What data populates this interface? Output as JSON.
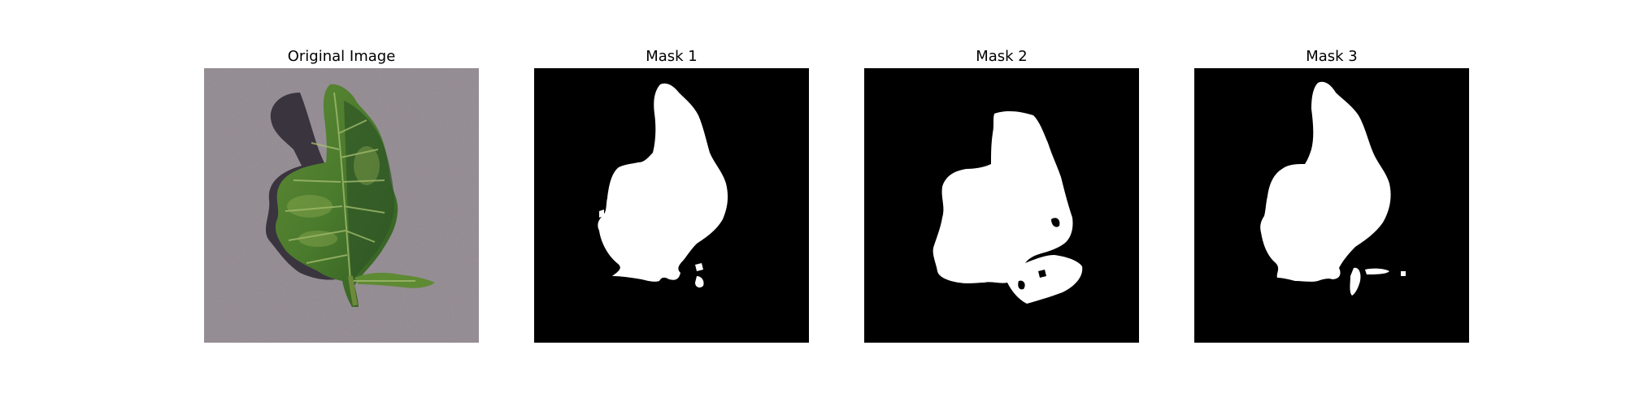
{
  "figure": {
    "panels": [
      {
        "title": "Original Image",
        "kind": "photo"
      },
      {
        "title": "Mask 1",
        "kind": "mask"
      },
      {
        "title": "Mask 2",
        "kind": "mask"
      },
      {
        "title": "Mask 3",
        "kind": "mask"
      }
    ]
  },
  "colors": {
    "mask_background": "#000000",
    "mask_foreground": "#ffffff",
    "photo_background": "#8a8289",
    "leaf_dark": "#2f5a22",
    "leaf_mid": "#4e7a30",
    "leaf_light": "#7da14a",
    "shadow": "#2a2530"
  }
}
